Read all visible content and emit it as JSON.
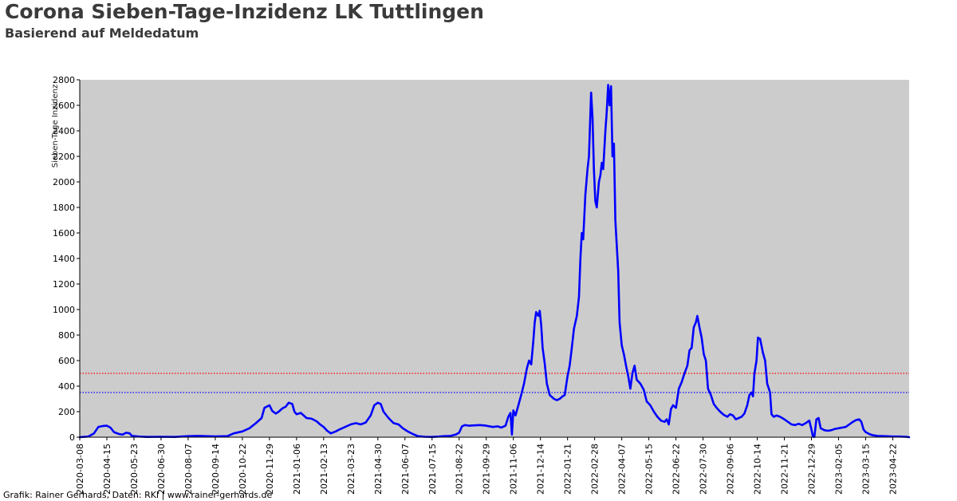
{
  "header": {
    "title": "Corona Sieben-Tage-Inzidenz LK Tuttlingen",
    "subtitle": "Basierend auf Meldedatum"
  },
  "footer": {
    "credit": "Grafik: Rainer Gerhards, Daten: RKI | www.rainer-gerhards.de"
  },
  "colors": {
    "plot_background": "#cccccc",
    "series": "#0000ff",
    "threshold_red": "#ff0000",
    "threshold_blue": "#0000ff"
  },
  "chart_data": {
    "type": "line",
    "title": "Corona Sieben-Tage-Inzidenz LK Tuttlingen",
    "subtitle": "Basierend auf Meldedatum",
    "xlabel": "",
    "ylabel": "Sieben-Tage Inzidenz",
    "ylim": [
      0,
      2800
    ],
    "yticks": [
      0,
      200,
      400,
      600,
      800,
      1000,
      1200,
      1400,
      1600,
      1800,
      2000,
      2200,
      2400,
      2600,
      2800
    ],
    "xlim": [
      "2020-03-08",
      "2023-05-15"
    ],
    "xticks": [
      "2020-03-08",
      "2020-04-15",
      "2020-05-23",
      "2020-06-30",
      "2020-08-07",
      "2020-09-14",
      "2020-10-22",
      "2020-11-29",
      "2021-01-06",
      "2021-02-13",
      "2021-03-23",
      "2021-04-30",
      "2021-06-07",
      "2021-07-15",
      "2021-08-22",
      "2021-09-29",
      "2021-11-06",
      "2021-12-14",
      "2022-01-21",
      "2022-02-28",
      "2022-04-07",
      "2022-05-15",
      "2022-06-22",
      "2022-07-30",
      "2022-09-06",
      "2022-10-14",
      "2022-11-21",
      "2022-12-29",
      "2023-02-05",
      "2023-03-15",
      "2023-04-22"
    ],
    "grid": false,
    "reference_lines": [
      {
        "y": 500,
        "color": "#ff0000",
        "style": "dotted"
      },
      {
        "y": 350,
        "color": "#0000ff",
        "style": "dotted"
      }
    ],
    "series": [
      {
        "color": "#0000ff",
        "points": [
          [
            "2020-03-08",
            0
          ],
          [
            "2020-03-20",
            5
          ],
          [
            "2020-03-28",
            30
          ],
          [
            "2020-04-03",
            80
          ],
          [
            "2020-04-10",
            88
          ],
          [
            "2020-04-15",
            90
          ],
          [
            "2020-04-20",
            75
          ],
          [
            "2020-04-25",
            40
          ],
          [
            "2020-05-02",
            25
          ],
          [
            "2020-05-07",
            20
          ],
          [
            "2020-05-12",
            35
          ],
          [
            "2020-05-17",
            30
          ],
          [
            "2020-05-20",
            10
          ],
          [
            "2020-05-30",
            5
          ],
          [
            "2020-06-10",
            2
          ],
          [
            "2020-06-30",
            3
          ],
          [
            "2020-07-20",
            2
          ],
          [
            "2020-08-07",
            8
          ],
          [
            "2020-08-20",
            10
          ],
          [
            "2020-09-14",
            6
          ],
          [
            "2020-10-01",
            8
          ],
          [
            "2020-10-10",
            30
          ],
          [
            "2020-10-22",
            45
          ],
          [
            "2020-11-01",
            70
          ],
          [
            "2020-11-10",
            110
          ],
          [
            "2020-11-18",
            150
          ],
          [
            "2020-11-22",
            230
          ],
          [
            "2020-11-29",
            250
          ],
          [
            "2020-12-03",
            205
          ],
          [
            "2020-12-08",
            185
          ],
          [
            "2020-12-12",
            200
          ],
          [
            "2020-12-17",
            225
          ],
          [
            "2020-12-22",
            240
          ],
          [
            "2020-12-26",
            270
          ],
          [
            "2020-12-31",
            260
          ],
          [
            "2021-01-03",
            200
          ],
          [
            "2021-01-06",
            180
          ],
          [
            "2021-01-12",
            190
          ],
          [
            "2021-01-20",
            150
          ],
          [
            "2021-01-27",
            145
          ],
          [
            "2021-02-03",
            125
          ],
          [
            "2021-02-08",
            100
          ],
          [
            "2021-02-13",
            80
          ],
          [
            "2021-02-18",
            50
          ],
          [
            "2021-02-23",
            30
          ],
          [
            "2021-03-02",
            45
          ],
          [
            "2021-03-07",
            60
          ],
          [
            "2021-03-15",
            80
          ],
          [
            "2021-03-23",
            100
          ],
          [
            "2021-03-30",
            110
          ],
          [
            "2021-04-06",
            100
          ],
          [
            "2021-04-13",
            115
          ],
          [
            "2021-04-20",
            170
          ],
          [
            "2021-04-25",
            250
          ],
          [
            "2021-04-30",
            270
          ],
          [
            "2021-05-04",
            260
          ],
          [
            "2021-05-08",
            200
          ],
          [
            "2021-05-15",
            150
          ],
          [
            "2021-05-22",
            110
          ],
          [
            "2021-05-29",
            100
          ],
          [
            "2021-06-04",
            70
          ],
          [
            "2021-06-11",
            45
          ],
          [
            "2021-06-18",
            25
          ],
          [
            "2021-06-25",
            8
          ],
          [
            "2021-07-05",
            3
          ],
          [
            "2021-07-15",
            2
          ],
          [
            "2021-07-25",
            5
          ],
          [
            "2021-08-01",
            8
          ],
          [
            "2021-08-10",
            10
          ],
          [
            "2021-08-17",
            20
          ],
          [
            "2021-08-22",
            35
          ],
          [
            "2021-08-26",
            85
          ],
          [
            "2021-08-30",
            95
          ],
          [
            "2021-09-05",
            90
          ],
          [
            "2021-09-20",
            95
          ],
          [
            "2021-09-29",
            90
          ],
          [
            "2021-10-08",
            80
          ],
          [
            "2021-10-15",
            85
          ],
          [
            "2021-10-20",
            75
          ],
          [
            "2021-10-26",
            90
          ],
          [
            "2021-10-30",
            160
          ],
          [
            "2021-11-02",
            190
          ],
          [
            "2021-11-04",
            20
          ],
          [
            "2021-11-06",
            210
          ],
          [
            "2021-11-09",
            170
          ],
          [
            "2021-11-13",
            250
          ],
          [
            "2021-11-17",
            330
          ],
          [
            "2021-11-21",
            420
          ],
          [
            "2021-11-25",
            540
          ],
          [
            "2021-11-28",
            600
          ],
          [
            "2021-12-01",
            570
          ],
          [
            "2021-12-04",
            750
          ],
          [
            "2021-12-06",
            900
          ],
          [
            "2021-12-08",
            980
          ],
          [
            "2021-12-11",
            950
          ],
          [
            "2021-12-13",
            990
          ],
          [
            "2021-12-15",
            880
          ],
          [
            "2021-12-17",
            700
          ],
          [
            "2021-12-20",
            580
          ],
          [
            "2021-12-23",
            420
          ],
          [
            "2021-12-27",
            330
          ],
          [
            "2022-01-02",
            300
          ],
          [
            "2022-01-06",
            290
          ],
          [
            "2022-01-10",
            300
          ],
          [
            "2022-01-14",
            320
          ],
          [
            "2022-01-17",
            330
          ],
          [
            "2022-01-21",
            480
          ],
          [
            "2022-01-24",
            560
          ],
          [
            "2022-01-27",
            700
          ],
          [
            "2022-01-30",
            850
          ],
          [
            "2022-02-03",
            950
          ],
          [
            "2022-02-06",
            1100
          ],
          [
            "2022-02-08",
            1400
          ],
          [
            "2022-02-10",
            1600
          ],
          [
            "2022-02-12",
            1550
          ],
          [
            "2022-02-15",
            1900
          ],
          [
            "2022-02-18",
            2100
          ],
          [
            "2022-02-20",
            2200
          ],
          [
            "2022-02-23",
            2700
          ],
          [
            "2022-02-25",
            2500
          ],
          [
            "2022-02-27",
            2100
          ],
          [
            "2022-03-01",
            1850
          ],
          [
            "2022-03-03",
            1800
          ],
          [
            "2022-03-06",
            2000
          ],
          [
            "2022-03-08",
            2050
          ],
          [
            "2022-03-10",
            2150
          ],
          [
            "2022-03-12",
            2100
          ],
          [
            "2022-03-15",
            2400
          ],
          [
            "2022-03-17",
            2550
          ],
          [
            "2022-03-19",
            2760
          ],
          [
            "2022-03-21",
            2600
          ],
          [
            "2022-03-23",
            2750
          ],
          [
            "2022-03-25",
            2200
          ],
          [
            "2022-03-27",
            2300
          ],
          [
            "2022-03-29",
            1700
          ],
          [
            "2022-04-02",
            1300
          ],
          [
            "2022-04-04",
            900
          ],
          [
            "2022-04-07",
            720
          ],
          [
            "2022-04-10",
            650
          ],
          [
            "2022-04-13",
            560
          ],
          [
            "2022-04-16",
            480
          ],
          [
            "2022-04-19",
            380
          ],
          [
            "2022-04-22",
            500
          ],
          [
            "2022-04-25",
            560
          ],
          [
            "2022-04-28",
            450
          ],
          [
            "2022-05-03",
            420
          ],
          [
            "2022-05-08",
            370
          ],
          [
            "2022-05-12",
            280
          ],
          [
            "2022-05-17",
            250
          ],
          [
            "2022-05-22",
            200
          ],
          [
            "2022-05-27",
            160
          ],
          [
            "2022-06-01",
            130
          ],
          [
            "2022-06-06",
            120
          ],
          [
            "2022-06-09",
            140
          ],
          [
            "2022-06-12",
            100
          ],
          [
            "2022-06-15",
            220
          ],
          [
            "2022-06-18",
            250
          ],
          [
            "2022-06-22",
            230
          ],
          [
            "2022-06-26",
            380
          ],
          [
            "2022-06-30",
            430
          ],
          [
            "2022-07-04",
            500
          ],
          [
            "2022-07-08",
            560
          ],
          [
            "2022-07-11",
            680
          ],
          [
            "2022-07-14",
            700
          ],
          [
            "2022-07-17",
            860
          ],
          [
            "2022-07-20",
            900
          ],
          [
            "2022-07-22",
            950
          ],
          [
            "2022-07-25",
            860
          ],
          [
            "2022-07-28",
            780
          ],
          [
            "2022-07-31",
            650
          ],
          [
            "2022-08-03",
            600
          ],
          [
            "2022-08-06",
            380
          ],
          [
            "2022-08-10",
            330
          ],
          [
            "2022-08-14",
            260
          ],
          [
            "2022-08-18",
            230
          ],
          [
            "2022-08-23",
            200
          ],
          [
            "2022-08-28",
            175
          ],
          [
            "2022-09-02",
            160
          ],
          [
            "2022-09-06",
            180
          ],
          [
            "2022-09-10",
            170
          ],
          [
            "2022-09-14",
            140
          ],
          [
            "2022-09-18",
            150
          ],
          [
            "2022-09-22",
            160
          ],
          [
            "2022-09-26",
            185
          ],
          [
            "2022-09-30",
            250
          ],
          [
            "2022-10-03",
            330
          ],
          [
            "2022-10-06",
            350
          ],
          [
            "2022-10-08",
            320
          ],
          [
            "2022-10-10",
            500
          ],
          [
            "2022-10-13",
            600
          ],
          [
            "2022-10-15",
            780
          ],
          [
            "2022-10-18",
            770
          ],
          [
            "2022-10-22",
            660
          ],
          [
            "2022-10-25",
            600
          ],
          [
            "2022-10-28",
            420
          ],
          [
            "2022-11-01",
            350
          ],
          [
            "2022-11-03",
            180
          ],
          [
            "2022-11-06",
            160
          ],
          [
            "2022-11-10",
            170
          ],
          [
            "2022-11-15",
            160
          ],
          [
            "2022-11-21",
            140
          ],
          [
            "2022-11-26",
            120
          ],
          [
            "2022-12-01",
            100
          ],
          [
            "2022-12-06",
            95
          ],
          [
            "2022-12-11",
            105
          ],
          [
            "2022-12-16",
            95
          ],
          [
            "2022-12-21",
            110
          ],
          [
            "2022-12-26",
            130
          ],
          [
            "2022-12-29",
            60
          ],
          [
            "2022-12-31",
            5
          ],
          [
            "2023-01-02",
            2
          ],
          [
            "2023-01-05",
            140
          ],
          [
            "2023-01-08",
            150
          ],
          [
            "2023-01-11",
            70
          ],
          [
            "2023-01-16",
            55
          ],
          [
            "2023-01-21",
            50
          ],
          [
            "2023-01-26",
            55
          ],
          [
            "2023-01-31",
            65
          ],
          [
            "2023-02-05",
            70
          ],
          [
            "2023-02-10",
            75
          ],
          [
            "2023-02-15",
            80
          ],
          [
            "2023-02-20",
            100
          ],
          [
            "2023-02-25",
            120
          ],
          [
            "2023-03-02",
            135
          ],
          [
            "2023-03-06",
            140
          ],
          [
            "2023-03-09",
            120
          ],
          [
            "2023-03-12",
            60
          ],
          [
            "2023-03-15",
            40
          ],
          [
            "2023-03-20",
            25
          ],
          [
            "2023-03-25",
            15
          ],
          [
            "2023-04-01",
            10
          ],
          [
            "2023-04-10",
            8
          ],
          [
            "2023-04-22",
            5
          ],
          [
            "2023-05-01",
            5
          ],
          [
            "2023-05-10",
            3
          ],
          [
            "2023-05-15",
            0
          ]
        ]
      }
    ]
  }
}
